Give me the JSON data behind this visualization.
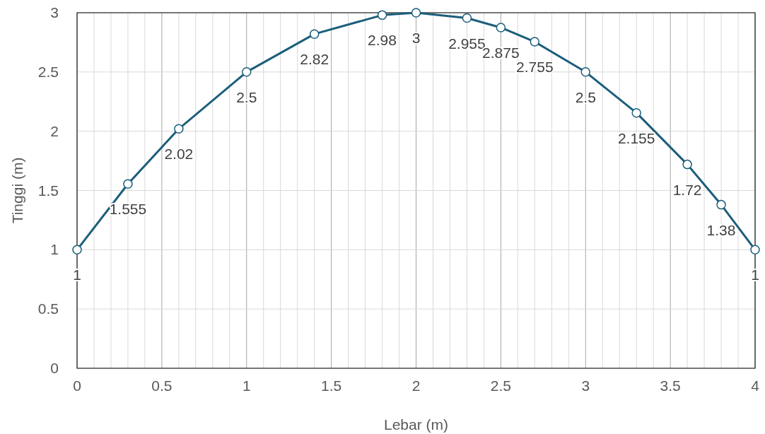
{
  "chart_data": {
    "type": "line",
    "xlabel": "Lebar (m)",
    "ylabel": "Tinggi (m)",
    "x": [
      0,
      0.3,
      0.6,
      1,
      1.4,
      1.8,
      2,
      2.3,
      2.5,
      2.7,
      3,
      3.3,
      3.6,
      3.8,
      4
    ],
    "series": [
      {
        "color": "#1b5e7b",
        "values": [
          1,
          1.555,
          2.02,
          2.5,
          2.82,
          2.98,
          3,
          2.955,
          2.875,
          2.755,
          2.5,
          2.155,
          1.72,
          1.38,
          1
        ]
      }
    ],
    "xlim": [
      0,
      4
    ],
    "xticks": [
      0,
      {
        "value": 0.1,
        "label": null
      },
      {
        "value": 0.2,
        "label": null
      },
      {
        "value": 0.3,
        "label": null
      },
      {
        "value": 0.4,
        "label": null
      },
      0.5,
      {
        "value": 0.6,
        "label": null
      },
      {
        "value": 0.7,
        "label": null
      },
      {
        "value": 0.8,
        "label": null
      },
      {
        "value": 0.9,
        "label": null
      },
      1,
      {
        "value": 1.1,
        "label": null
      },
      {
        "value": 1.2,
        "label": null
      },
      {
        "value": 1.3,
        "label": null
      },
      {
        "value": 1.4,
        "label": null
      },
      1.5,
      {
        "value": 1.6,
        "label": null
      },
      {
        "value": 1.7,
        "label": null
      },
      {
        "value": 1.8,
        "label": null
      },
      {
        "value": 1.9,
        "label": null
      },
      2,
      {
        "value": 2.1,
        "label": null
      },
      {
        "value": 2.2,
        "label": null
      },
      {
        "value": 2.3,
        "label": null
      },
      {
        "value": 2.4,
        "label": null
      },
      2.5,
      {
        "value": 2.6,
        "label": null
      },
      {
        "value": 2.7,
        "label": null
      },
      {
        "value": 2.8,
        "label": null
      },
      {
        "value": 2.9,
        "label": null
      },
      3,
      {
        "value": 3.1,
        "label": null
      },
      {
        "value": 3.2,
        "label": null
      },
      {
        "value": 3.3,
        "label": null
      },
      {
        "value": 3.4,
        "label": null
      },
      3.5,
      {
        "value": 3.6,
        "label": null
      },
      {
        "value": 3.7,
        "label": null
      },
      {
        "value": 3.8,
        "label": null
      },
      {
        "value": 3.9,
        "label": null
      },
      4
    ],
    "ylim": [
      0,
      3
    ],
    "yticks": [
      0,
      0.5,
      1,
      1.5,
      2,
      2.5,
      3
    ],
    "grid": true,
    "marker": "circle",
    "line_style": "solid",
    "data_labels": true
  }
}
